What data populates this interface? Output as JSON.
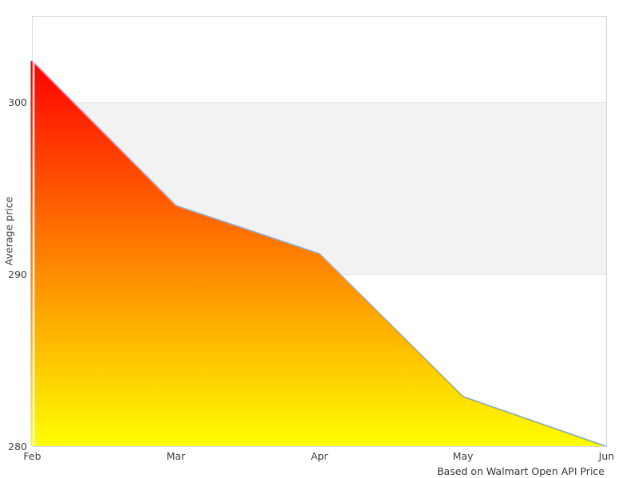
{
  "chart_data": {
    "type": "area",
    "title": "",
    "xlabel": "",
    "ylabel": "Average price",
    "caption": "Based on Walmart Open API Price",
    "categories": [
      "Feb",
      "Mar",
      "Apr",
      "May",
      "Jun"
    ],
    "values": [
      302.4,
      294.0,
      291.2,
      282.9,
      280.0
    ],
    "ylim": [
      280,
      305
    ],
    "yticks": [
      280,
      290,
      300
    ],
    "band": {
      "from": 290,
      "to": 300
    },
    "grid": "band-only",
    "legend": "none",
    "colors": {
      "area_gradient_top": "#ff0000",
      "area_gradient_bottom": "#ffff00",
      "line_stroke": "#8aabd4",
      "band_fill": "#f2f2f2",
      "band_edge": "#e8e8e8",
      "plot_border": "#d9d9d9",
      "label_color": "#3f3f3f",
      "background": "#ffffff"
    }
  }
}
